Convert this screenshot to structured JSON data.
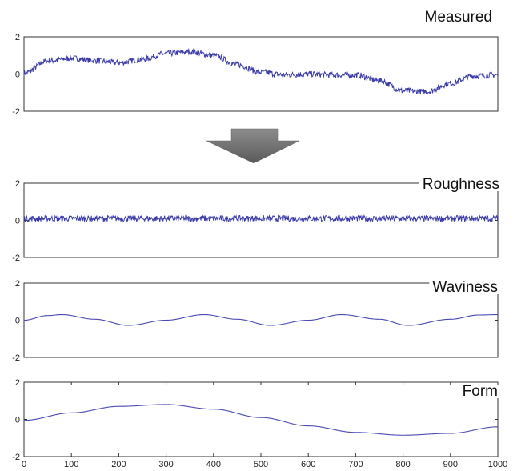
{
  "chart_data": [
    {
      "type": "line",
      "title": "Measured",
      "xlim": [
        0,
        1000
      ],
      "ylim": [
        -2,
        2
      ],
      "yticks": [
        2,
        0,
        -2
      ],
      "x_tick_labels_shown": false,
      "series": [
        {
          "noisy": true,
          "x": [
            0,
            50,
            100,
            150,
            200,
            250,
            300,
            350,
            400,
            450,
            500,
            550,
            600,
            650,
            700,
            750,
            800,
            850,
            900,
            950,
            1000
          ],
          "y": [
            0.05,
            0.7,
            0.85,
            0.72,
            0.6,
            0.8,
            1.1,
            1.2,
            1.0,
            0.5,
            0.1,
            -0.05,
            0.0,
            -0.05,
            -0.05,
            -0.35,
            -0.9,
            -0.95,
            -0.5,
            -0.1,
            -0.05
          ]
        }
      ]
    },
    {
      "type": "line",
      "title": "Roughness",
      "xlim": [
        0,
        1000
      ],
      "ylim": [
        -2,
        2
      ],
      "yticks": [
        2,
        0,
        -2
      ],
      "x_tick_labels_shown": false,
      "series": [
        {
          "noisy": true,
          "x": [
            0,
            1000
          ],
          "y": [
            0.1,
            0.1
          ]
        }
      ]
    },
    {
      "type": "line",
      "title": "Waviness",
      "xlim": [
        0,
        1000
      ],
      "ylim": [
        -2,
        2
      ],
      "yticks": [
        2,
        0,
        -2
      ],
      "x_tick_labels_shown": false,
      "series": [
        {
          "x": [
            0,
            50,
            80,
            150,
            220,
            300,
            380,
            450,
            520,
            600,
            670,
            750,
            810,
            900,
            960,
            1000
          ],
          "y": [
            0.0,
            0.25,
            0.3,
            0.05,
            -0.28,
            0.0,
            0.3,
            0.05,
            -0.28,
            0.0,
            0.3,
            0.05,
            -0.28,
            0.05,
            0.28,
            0.3
          ]
        }
      ]
    },
    {
      "type": "line",
      "title": "Form",
      "xlim": [
        0,
        1000
      ],
      "ylim": [
        -2,
        2
      ],
      "yticks": [
        2,
        0,
        -2
      ],
      "xticks": [
        0,
        100,
        200,
        300,
        400,
        500,
        600,
        700,
        800,
        900,
        1000
      ],
      "x_tick_labels_shown": true,
      "series": [
        {
          "x": [
            0,
            100,
            200,
            300,
            400,
            500,
            600,
            700,
            800,
            900,
            1000
          ],
          "y": [
            -0.05,
            0.35,
            0.7,
            0.8,
            0.55,
            0.1,
            -0.35,
            -0.7,
            -0.85,
            -0.75,
            -0.4
          ]
        }
      ]
    }
  ],
  "colors": {
    "line": "#3a3aa8",
    "arrow": "#7a7a7a"
  }
}
